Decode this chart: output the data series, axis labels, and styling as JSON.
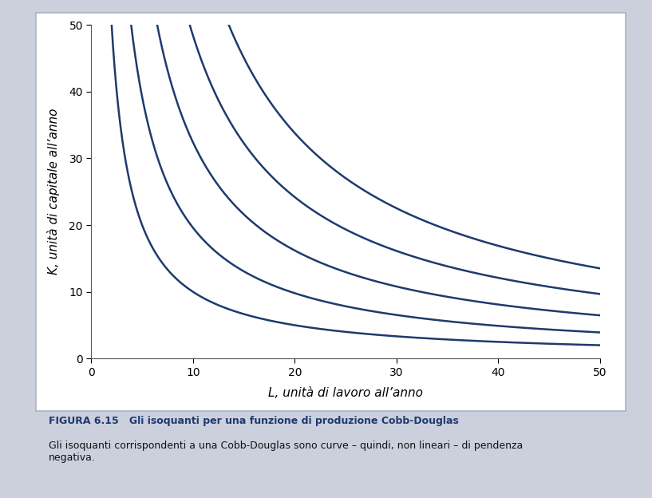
{
  "title_bold": "FIGURA 6.15   Gli isoquanti per una funzione di produzione Cobb-Douglas",
  "caption": "Gli isoquanti corrispondenti a una Cobb-Douglas sono curve – quindi, non lineari – di pendenza\nnegativa.",
  "xlabel": "L, unità di lavoro all’anno",
  "ylabel": "K, unità di capitale all’anno",
  "xlim": [
    0,
    50
  ],
  "ylim": [
    0,
    50
  ],
  "xticks": [
    0,
    10,
    20,
    30,
    40,
    50
  ],
  "yticks": [
    0,
    10,
    20,
    30,
    40,
    50
  ],
  "alpha": 0.5,
  "beta": 0.5,
  "output_levels": [
    10,
    14,
    18,
    22,
    26
  ],
  "curve_color": "#1e3a6e",
  "line_width": 1.8,
  "outer_bg_color": "#ccd0dd",
  "box_bg_color": "#ffffff",
  "box_edge_color": "#aab2c0",
  "figure_width": 8.17,
  "figure_height": 6.24,
  "dpi": 100
}
